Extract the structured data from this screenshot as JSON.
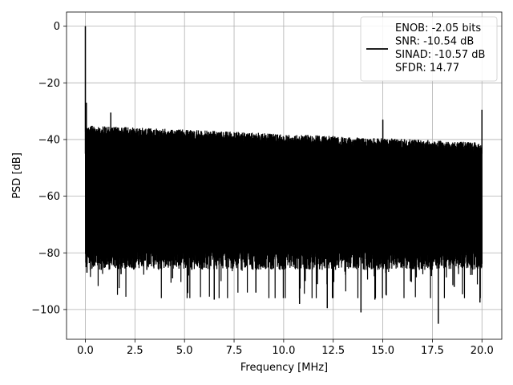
{
  "chart_data": {
    "type": "line",
    "xlabel": "Frequency [MHz]",
    "ylabel": "PSD [dB]",
    "xlim": [
      -0.95,
      21.0
    ],
    "ylim": [
      -110.5,
      5.0
    ],
    "xticks": [
      0.0,
      2.5,
      5.0,
      7.5,
      10.0,
      12.5,
      15.0,
      17.5,
      20.0
    ],
    "xtick_labels": [
      "0.0",
      "2.5",
      "5.0",
      "7.5",
      "10.0",
      "12.5",
      "15.0",
      "17.5",
      "20.0"
    ],
    "yticks": [
      0,
      -20,
      -40,
      -60,
      -80,
      -100
    ],
    "ytick_labels": [
      "0",
      "−20",
      "−40",
      "−60",
      "−80",
      "−100"
    ],
    "grid": true,
    "legend_position": "top-right",
    "legend": [
      "ENOB: -2.05 bits",
      "SNR: -10.54 dB",
      "SINAD: -10.57 dB",
      "SFDR: 14.77"
    ],
    "series": [
      {
        "color": "#000000",
        "band": {
          "x_start": 0.0,
          "x_end": 20.0,
          "upper_start": -35,
          "upper_end": -41,
          "lower_typical": -78,
          "lower_min": -96
        },
        "spikes": [
          {
            "x": 0.0,
            "y": 0.0
          },
          {
            "x": 0.05,
            "y": -27
          },
          {
            "x": 1.28,
            "y": -30.5
          },
          {
            "x": 15.0,
            "y": -33
          },
          {
            "x": 20.0,
            "y": -29.5
          }
        ],
        "dips": [
          {
            "x": 0.08,
            "y": -87
          },
          {
            "x": 0.8,
            "y": -86
          },
          {
            "x": 1.8,
            "y": -87.5
          },
          {
            "x": 3.1,
            "y": -86
          },
          {
            "x": 4.4,
            "y": -89
          },
          {
            "x": 5.2,
            "y": -88
          },
          {
            "x": 6.5,
            "y": -96.5
          },
          {
            "x": 8.6,
            "y": -94
          },
          {
            "x": 10.8,
            "y": -98
          },
          {
            "x": 11.7,
            "y": -91
          },
          {
            "x": 12.2,
            "y": -99.5
          },
          {
            "x": 13.9,
            "y": -101
          },
          {
            "x": 14.6,
            "y": -96.5
          },
          {
            "x": 16.4,
            "y": -90
          },
          {
            "x": 17.8,
            "y": -105
          },
          {
            "x": 18.6,
            "y": -92
          },
          {
            "x": 19.9,
            "y": -97.5
          }
        ]
      }
    ]
  }
}
